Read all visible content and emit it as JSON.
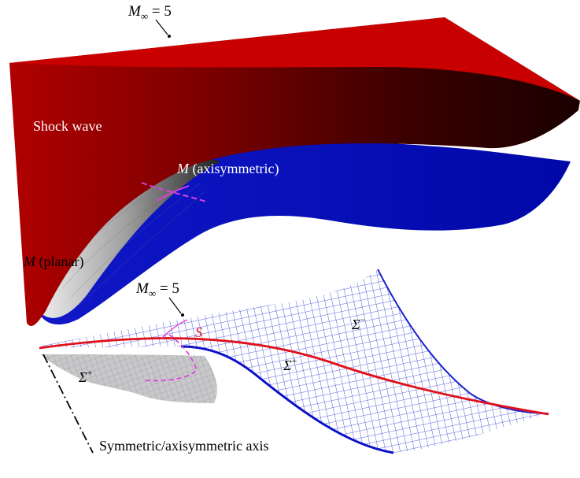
{
  "labels": {
    "mach_top": {
      "symbol": "M",
      "sub": "∞",
      "rest": " = 5"
    },
    "mach_bottom": {
      "symbol": "M",
      "sub": "∞",
      "rest": " = 5"
    },
    "shock_wave": "Shock wave",
    "m_axisymmetric": {
      "symbol": "M",
      "rest": " (axisymmetric)"
    },
    "m_planar": {
      "symbol": "M",
      "rest": " (planar)"
    },
    "s_curve": "S",
    "sigma_minus": {
      "symbol": "Σ",
      "sup": "−"
    },
    "sigma_plus_right": {
      "symbol": "Σ",
      "sup": "+"
    },
    "sigma_plus_left": {
      "symbol": "Σ",
      "sup": "+"
    },
    "axis_label": "Symmetric/axisymmetric axis"
  },
  "colors": {
    "shock_red": "#c00000",
    "shock_dark": "#1e0000",
    "body_blue": "#0a12c8",
    "mesh_blue": "#1f2fd6",
    "curve_red": "#e0101a",
    "curve_magenta": "#e040e0",
    "gray_surface": "#b8b8b8"
  }
}
